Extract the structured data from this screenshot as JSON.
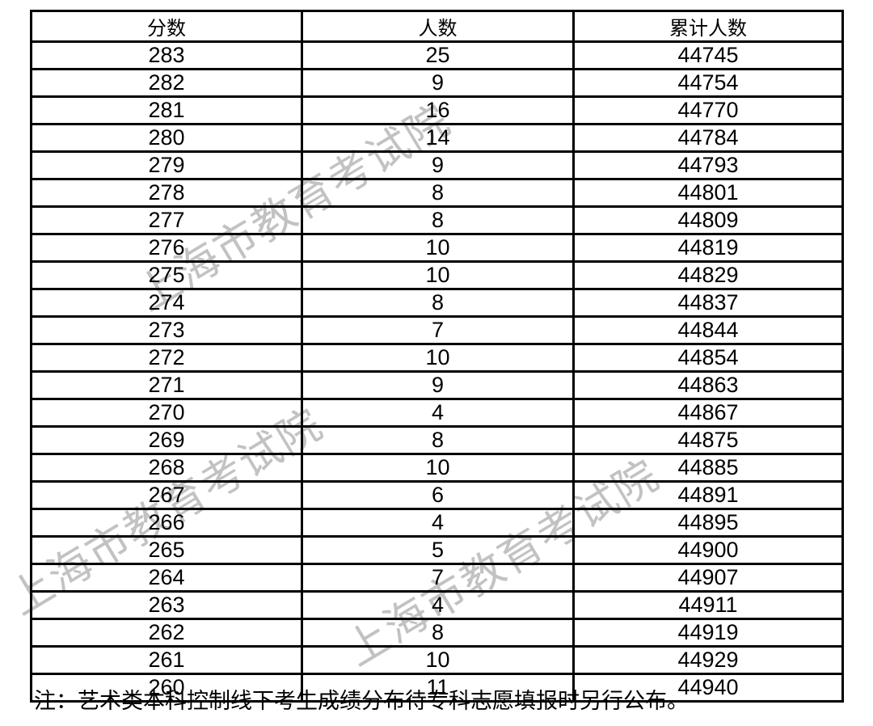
{
  "watermark": {
    "text": "上海市教育考试院",
    "color": "#c2c2c2"
  },
  "table": {
    "headers": [
      "分数",
      "人数",
      "累计人数"
    ],
    "rows": [
      [
        "283",
        "25",
        "44745"
      ],
      [
        "282",
        "9",
        "44754"
      ],
      [
        "281",
        "16",
        "44770"
      ],
      [
        "280",
        "14",
        "44784"
      ],
      [
        "279",
        "9",
        "44793"
      ],
      [
        "278",
        "8",
        "44801"
      ],
      [
        "277",
        "8",
        "44809"
      ],
      [
        "276",
        "10",
        "44819"
      ],
      [
        "275",
        "10",
        "44829"
      ],
      [
        "274",
        "8",
        "44837"
      ],
      [
        "273",
        "7",
        "44844"
      ],
      [
        "272",
        "10",
        "44854"
      ],
      [
        "271",
        "9",
        "44863"
      ],
      [
        "270",
        "4",
        "44867"
      ],
      [
        "269",
        "8",
        "44875"
      ],
      [
        "268",
        "10",
        "44885"
      ],
      [
        "267",
        "6",
        "44891"
      ],
      [
        "266",
        "4",
        "44895"
      ],
      [
        "265",
        "5",
        "44900"
      ],
      [
        "264",
        "7",
        "44907"
      ],
      [
        "263",
        "4",
        "44911"
      ],
      [
        "262",
        "8",
        "44919"
      ],
      [
        "261",
        "10",
        "44929"
      ],
      [
        "260",
        "11",
        "44940"
      ]
    ]
  },
  "note": "注：艺术类本科控制线下考生成绩分布待专科志愿填报时另行公布。"
}
